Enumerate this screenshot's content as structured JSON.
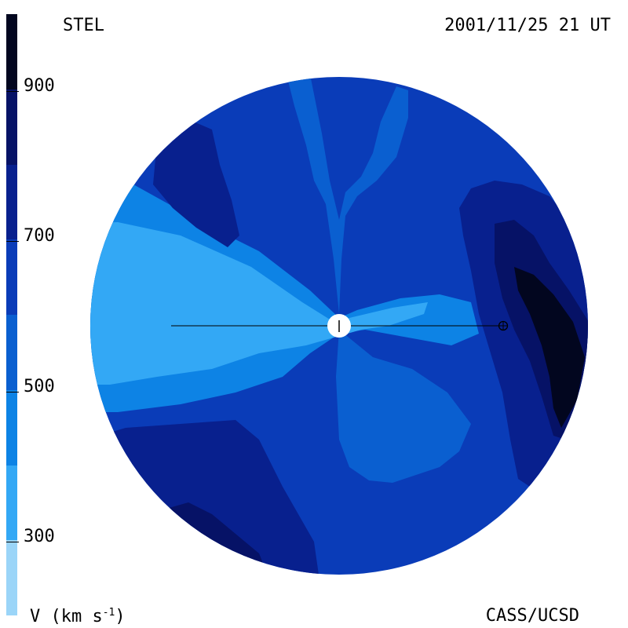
{
  "header": {
    "station": "STEL",
    "datetime": "2001/11/25 21 UT"
  },
  "footer": {
    "unit_prefix": "V (km s",
    "unit_exp": "-1",
    "unit_suffix": ")",
    "credit": "CASS/UCSD"
  },
  "chart_data": {
    "type": "heatmap",
    "title": "",
    "quantity": "V (km s-1)",
    "colorbar": {
      "range": [
        200,
        1000
      ],
      "ticks": [
        "300",
        "500",
        "700",
        "900"
      ],
      "tick_values": [
        300,
        500,
        700,
        900
      ],
      "levels": [
        {
          "from": 200,
          "to": 300,
          "color": "#9bd5f8"
        },
        {
          "from": 300,
          "to": 400,
          "color": "#33a8f5"
        },
        {
          "from": 400,
          "to": 500,
          "color": "#0d83e5"
        },
        {
          "from": 500,
          "to": 600,
          "color": "#0a5fd0"
        },
        {
          "from": 600,
          "to": 700,
          "color": "#0a3cb8"
        },
        {
          "from": 700,
          "to": 800,
          "color": "#08208e"
        },
        {
          "from": 800,
          "to": 900,
          "color": "#061266"
        },
        {
          "from": 900,
          "to": 1000,
          "color": "#02061f"
        }
      ]
    },
    "regions": [
      {
        "name": "background",
        "level": 600
      },
      {
        "name": "west-streamer",
        "level": 400
      },
      {
        "name": "west-streamer-core",
        "level": 300
      },
      {
        "name": "north-plume",
        "level": 500
      },
      {
        "name": "south-fan",
        "level": 500
      },
      {
        "name": "northwest-patch",
        "level": 700
      },
      {
        "name": "east-band",
        "level": 700
      },
      {
        "name": "east-core",
        "level": 800
      },
      {
        "name": "east-peak",
        "level": 900
      },
      {
        "name": "southwest-patch",
        "level": 700
      },
      {
        "name": "south-patch",
        "level": 800
      }
    ],
    "markers": [
      {
        "name": "sun",
        "symbol": "+"
      },
      {
        "name": "earth",
        "symbol": "⊕"
      }
    ]
  }
}
